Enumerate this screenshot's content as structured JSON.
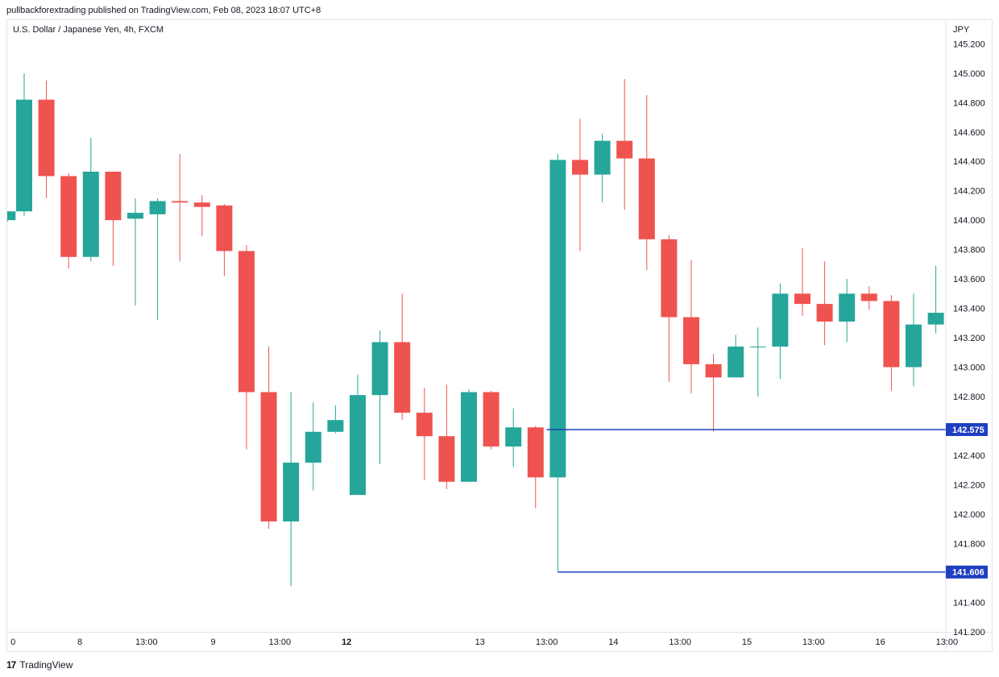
{
  "header": {
    "published": "pullbackforextrading published on TradingView.com, Feb 08, 2023 18:07 UTC+8"
  },
  "symbol_title": "U.S. Dollar / Japanese Yen, 4h, FXCM",
  "footer": {
    "logo_text": "17",
    "brand": "TradingView"
  },
  "colors": {
    "up": "#26a69a",
    "down": "#ef5350",
    "level": "#1e3fbf",
    "axis_text": "#131722",
    "border": "#e0e3eb"
  },
  "chart_data": {
    "type": "candlestick",
    "currency": "JPY",
    "ylim": [
      141.1,
      145.35
    ],
    "y_ticks": [
      "145.200",
      "145.000",
      "144.800",
      "144.600",
      "144.400",
      "144.200",
      "144.000",
      "143.800",
      "143.600",
      "143.400",
      "143.200",
      "143.000",
      "142.800",
      "142.400",
      "142.200",
      "142.000",
      "141.800",
      "141.400",
      "141.200"
    ],
    "x_ticks": [
      {
        "label": "0",
        "index": -0.5,
        "bold": false
      },
      {
        "label": "8",
        "index": 2.5,
        "bold": false
      },
      {
        "label": "13:00",
        "index": 5.5,
        "bold": false
      },
      {
        "label": "9",
        "index": 8.5,
        "bold": false
      },
      {
        "label": "13:00",
        "index": 11.5,
        "bold": false
      },
      {
        "label": "12",
        "index": 14.5,
        "bold": true
      },
      {
        "label": "13",
        "index": 20.5,
        "bold": false
      },
      {
        "label": "13:00",
        "index": 23.5,
        "bold": false
      },
      {
        "label": "14",
        "index": 26.5,
        "bold": false
      },
      {
        "label": "13:00",
        "index": 29.5,
        "bold": false
      },
      {
        "label": "15",
        "index": 32.5,
        "bold": false
      },
      {
        "label": "13:00",
        "index": 35.5,
        "bold": false
      },
      {
        "label": "16",
        "index": 38.5,
        "bold": false
      },
      {
        "label": "13:00",
        "index": 41.5,
        "bold": false
      }
    ],
    "candles": [
      {
        "o": 144.06,
        "h": 145.0,
        "l": 144.03,
        "c": 144.82
      },
      {
        "o": 144.82,
        "h": 144.95,
        "l": 144.15,
        "c": 144.3
      },
      {
        "o": 144.3,
        "h": 144.32,
        "l": 143.67,
        "c": 143.75
      },
      {
        "o": 143.75,
        "h": 144.56,
        "l": 143.72,
        "c": 144.33
      },
      {
        "o": 144.33,
        "h": 144.33,
        "l": 143.69,
        "c": 144.0
      },
      {
        "o": 144.01,
        "h": 144.15,
        "l": 143.42,
        "c": 144.05
      },
      {
        "o": 144.04,
        "h": 144.15,
        "l": 143.32,
        "c": 144.13
      },
      {
        "o": 144.13,
        "h": 144.45,
        "l": 143.72,
        "c": 144.12
      },
      {
        "o": 144.12,
        "h": 144.17,
        "l": 143.89,
        "c": 144.09
      },
      {
        "o": 144.1,
        "h": 144.11,
        "l": 143.62,
        "c": 143.79
      },
      {
        "o": 143.79,
        "h": 143.83,
        "l": 142.44,
        "c": 142.83
      },
      {
        "o": 142.83,
        "h": 143.14,
        "l": 141.9,
        "c": 141.95
      },
      {
        "o": 141.95,
        "h": 142.83,
        "l": 141.51,
        "c": 142.35
      },
      {
        "o": 142.35,
        "h": 142.76,
        "l": 142.16,
        "c": 142.56
      },
      {
        "o": 142.56,
        "h": 142.74,
        "l": 142.55,
        "c": 142.64
      },
      {
        "o": 142.13,
        "h": 142.95,
        "l": 142.13,
        "c": 142.81
      },
      {
        "o": 142.81,
        "h": 143.25,
        "l": 142.34,
        "c": 143.17
      },
      {
        "o": 143.17,
        "h": 143.5,
        "l": 142.64,
        "c": 142.69
      },
      {
        "o": 142.69,
        "h": 142.86,
        "l": 142.23,
        "c": 142.53
      },
      {
        "o": 142.53,
        "h": 142.88,
        "l": 142.17,
        "c": 142.22
      },
      {
        "o": 142.22,
        "h": 142.85,
        "l": 142.22,
        "c": 142.83
      },
      {
        "o": 142.83,
        "h": 142.84,
        "l": 142.44,
        "c": 142.46
      },
      {
        "o": 142.46,
        "h": 142.72,
        "l": 142.32,
        "c": 142.59
      },
      {
        "o": 142.59,
        "h": 142.6,
        "l": 142.04,
        "c": 142.25
      },
      {
        "o": 142.25,
        "h": 144.45,
        "l": 141.61,
        "c": 144.41
      },
      {
        "o": 144.41,
        "h": 144.69,
        "l": 143.79,
        "c": 144.31
      },
      {
        "o": 144.31,
        "h": 144.59,
        "l": 144.12,
        "c": 144.54
      },
      {
        "o": 144.54,
        "h": 144.96,
        "l": 144.07,
        "c": 144.42
      },
      {
        "o": 144.42,
        "h": 144.85,
        "l": 143.66,
        "c": 143.87
      },
      {
        "o": 143.87,
        "h": 143.9,
        "l": 142.9,
        "c": 143.34
      },
      {
        "o": 143.34,
        "h": 143.73,
        "l": 142.82,
        "c": 143.02
      },
      {
        "o": 143.02,
        "h": 143.09,
        "l": 142.56,
        "c": 142.93
      },
      {
        "o": 142.93,
        "h": 143.22,
        "l": 142.93,
        "c": 143.14
      },
      {
        "o": 143.14,
        "h": 143.27,
        "l": 142.8,
        "c": 143.14
      },
      {
        "o": 143.14,
        "h": 143.57,
        "l": 142.92,
        "c": 143.5
      },
      {
        "o": 143.5,
        "h": 143.81,
        "l": 143.35,
        "c": 143.43
      },
      {
        "o": 143.43,
        "h": 143.72,
        "l": 143.15,
        "c": 143.31
      },
      {
        "o": 143.31,
        "h": 143.6,
        "l": 143.17,
        "c": 143.5
      },
      {
        "o": 143.5,
        "h": 143.55,
        "l": 143.39,
        "c": 143.45
      },
      {
        "o": 143.45,
        "h": 143.49,
        "l": 142.84,
        "c": 143.0
      },
      {
        "o": 143.0,
        "h": 143.5,
        "l": 142.87,
        "c": 143.29
      },
      {
        "o": 143.29,
        "h": 143.69,
        "l": 143.23,
        "c": 143.37
      }
    ],
    "edge_candle": {
      "o": 144.0,
      "h": 144.06,
      "l": 143.99,
      "c": 144.06
    },
    "levels": [
      {
        "price": 142.575,
        "label": "142.575",
        "from_index": 23.5
      },
      {
        "price": 141.606,
        "label": "141.606",
        "from_index": 24
      }
    ]
  }
}
